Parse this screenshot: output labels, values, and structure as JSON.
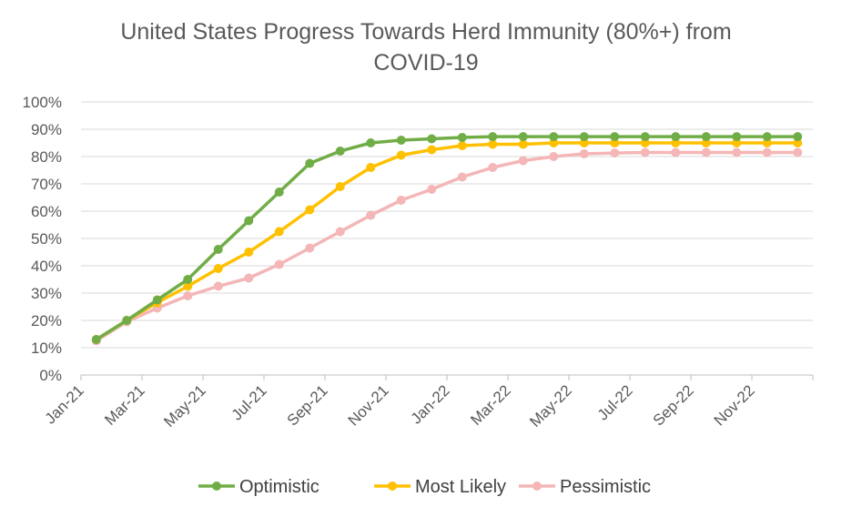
{
  "chart_data": {
    "type": "line",
    "title_line1": "United States Progress Towards Herd Immunity (80%+) from",
    "title_line2": "COVID-19",
    "xlabel": "",
    "ylabel": "",
    "ylim": [
      0,
      100
    ],
    "y_ticks": [
      "0%",
      "10%",
      "20%",
      "30%",
      "40%",
      "50%",
      "60%",
      "70%",
      "80%",
      "90%",
      "100%"
    ],
    "x_tick_labels": [
      "Jan-21",
      "Mar-21",
      "May-21",
      "Jul-21",
      "Sep-21",
      "Nov-21",
      "Jan-22",
      "Mar-22",
      "May-22",
      "Jul-22",
      "Sep-22",
      "Nov-22"
    ],
    "x": [
      "Jan-21",
      "Feb-21",
      "Mar-21",
      "Apr-21",
      "May-21",
      "Jun-21",
      "Jul-21",
      "Aug-21",
      "Sep-21",
      "Oct-21",
      "Nov-21",
      "Dec-21",
      "Jan-22",
      "Feb-22",
      "Mar-22",
      "Apr-22",
      "May-22",
      "Jun-22",
      "Jul-22",
      "Aug-22",
      "Sep-22",
      "Oct-22",
      "Nov-22",
      "Dec-22"
    ],
    "series": [
      {
        "name": "Optimistic",
        "color": "#70AD47",
        "values": [
          13,
          20,
          27.5,
          35,
          46,
          56.5,
          67,
          77.5,
          82,
          85,
          86,
          86.5,
          87,
          87.3,
          87.3,
          87.3,
          87.3,
          87.3,
          87.3,
          87.3,
          87.3,
          87.3,
          87.3,
          87.3
        ]
      },
      {
        "name": "Most Likely",
        "color": "#FFC000",
        "values": [
          13,
          20,
          26.5,
          32.5,
          39,
          45,
          52.5,
          60.5,
          69,
          76,
          80.5,
          82.5,
          84,
          84.5,
          84.5,
          85,
          85,
          85,
          85,
          85,
          85,
          85,
          85,
          85
        ]
      },
      {
        "name": "Pessimistic",
        "color": "#F4B6B6",
        "values": [
          12.5,
          19.5,
          24.5,
          29,
          32.5,
          35.5,
          40.5,
          46.5,
          52.5,
          58.5,
          64,
          68,
          72.5,
          76,
          78.5,
          80,
          81,
          81.3,
          81.5,
          81.5,
          81.5,
          81.5,
          81.5,
          81.5
        ]
      }
    ],
    "grid": true,
    "legend_position": "bottom"
  }
}
